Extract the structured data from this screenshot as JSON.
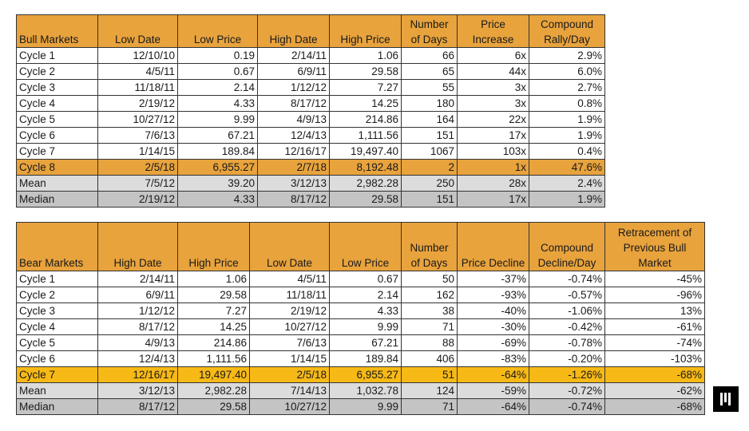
{
  "chart_data": [
    {
      "type": "table",
      "headers": [
        "Bull Markets",
        "Low Date",
        "Low Price",
        "High Date",
        "High Price",
        "Number of Days",
        "Price Increase",
        "Compound Rally/Day"
      ],
      "rows": [
        [
          "Cycle 1",
          "12/10/10",
          "0.19",
          "2/14/11",
          "1.06",
          "66",
          "6x",
          "2.9%"
        ],
        [
          "Cycle 2",
          "4/5/11",
          "0.67",
          "6/9/11",
          "29.58",
          "65",
          "44x",
          "6.0%"
        ],
        [
          "Cycle 3",
          "11/18/11",
          "2.14",
          "1/12/12",
          "7.27",
          "55",
          "3x",
          "2.7%"
        ],
        [
          "Cycle 4",
          "2/19/12",
          "4.33",
          "8/17/12",
          "14.25",
          "180",
          "3x",
          "0.8%"
        ],
        [
          "Cycle 5",
          "10/27/12",
          "9.99",
          "4/9/13",
          "214.86",
          "164",
          "22x",
          "1.9%"
        ],
        [
          "Cycle 6",
          "7/6/13",
          "67.21",
          "12/4/13",
          "1,111.56",
          "151",
          "17x",
          "1.9%"
        ],
        [
          "Cycle 7",
          "1/14/15",
          "189.84",
          "12/16/17",
          "19,497.40",
          "1067",
          "103x",
          "0.4%"
        ],
        [
          "Cycle 8",
          "2/5/18",
          "6,955.27",
          "2/7/18",
          "8,192.48",
          "2",
          "1x",
          "47.6%"
        ],
        [
          "Mean",
          "7/5/12",
          "39.20",
          "3/12/13",
          "2,982.28",
          "250",
          "28x",
          "2.4%"
        ],
        [
          "Median",
          "2/19/12",
          "4.33",
          "8/17/12",
          "29.58",
          "151",
          "17x",
          "1.9%"
        ]
      ],
      "row_styles": [
        "",
        "",
        "",
        "",
        "",
        "",
        "",
        "highlight-orange",
        "mean-gray",
        "median-gray"
      ]
    },
    {
      "type": "table",
      "headers": [
        "Bear Markets",
        "High Date",
        "High Price",
        "Low Date",
        "Low Price",
        "Number of Days",
        "Price Decline",
        "Compound Decline/Day",
        "Retracement of Previous Bull Market"
      ],
      "rows": [
        [
          "Cycle 1",
          "2/14/11",
          "1.06",
          "4/5/11",
          "0.67",
          "50",
          "-37%",
          "-0.74%",
          "-45%"
        ],
        [
          "Cycle 2",
          "6/9/11",
          "29.58",
          "11/18/11",
          "2.14",
          "162",
          "-93%",
          "-0.57%",
          "-96%"
        ],
        [
          "Cycle 3",
          "1/12/12",
          "7.27",
          "2/19/12",
          "4.33",
          "38",
          "-40%",
          "-1.06%",
          "13%"
        ],
        [
          "Cycle 4",
          "8/17/12",
          "14.25",
          "10/27/12",
          "9.99",
          "71",
          "-30%",
          "-0.42%",
          "-61%"
        ],
        [
          "Cycle 5",
          "4/9/13",
          "214.86",
          "7/6/13",
          "67.21",
          "88",
          "-69%",
          "-0.78%",
          "-74%"
        ],
        [
          "Cycle 6",
          "12/4/13",
          "1,111.56",
          "1/14/15",
          "189.84",
          "406",
          "-83%",
          "-0.20%",
          "-103%"
        ],
        [
          "Cycle 7",
          "12/16/17",
          "19,497.40",
          "2/5/18",
          "6,955.27",
          "51",
          "-64%",
          "-1.26%",
          "-68%"
        ],
        [
          "Mean",
          "3/12/13",
          "2,982.28",
          "7/14/13",
          "1,032.78",
          "124",
          "-59%",
          "-0.72%",
          "-62%"
        ],
        [
          "Median",
          "8/17/12",
          "29.58",
          "10/27/12",
          "9.99",
          "71",
          "-64%",
          "-0.74%",
          "-68%"
        ]
      ],
      "row_styles": [
        "",
        "",
        "",
        "",
        "",
        "",
        "highlight-yellow",
        "mean-gray",
        "median-gray"
      ]
    }
  ],
  "colors": {
    "header_bg": "#e8a33d",
    "highlight_orange": "#e8a33d",
    "highlight_yellow": "#f7b916",
    "mean_bg": "#dcdcdc",
    "median_bg": "#c4c4c4",
    "logo_bg": "#000000"
  },
  "logo": {
    "icon": "pantera-logo-icon"
  }
}
